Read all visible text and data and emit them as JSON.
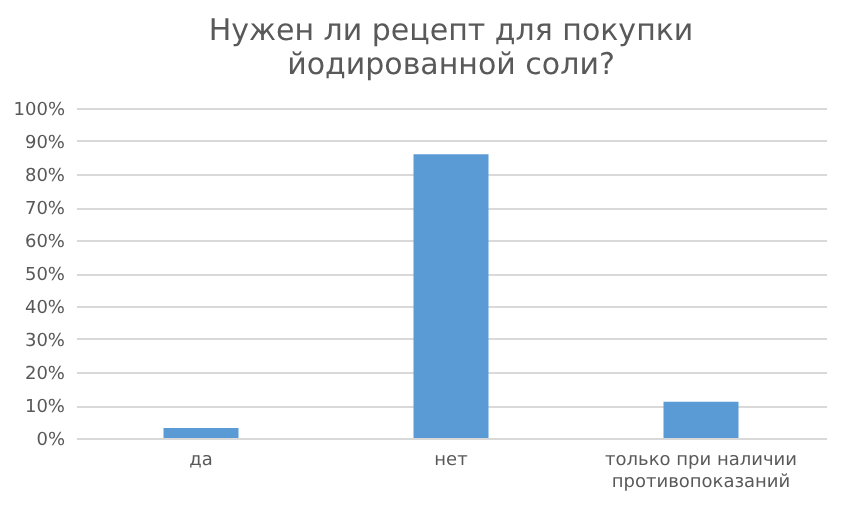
{
  "chart_data": {
    "type": "bar",
    "title": "Нужен ли рецепт для покупки йодированной соли?",
    "categories": [
      "да",
      "нет",
      "только при наличии противопоказаний"
    ],
    "values": [
      3,
      86,
      11
    ],
    "color": "#5b9bd5",
    "ylim": [
      0,
      100
    ],
    "yticks": [
      {
        "value": 0,
        "label": "0%"
      },
      {
        "value": 10,
        "label": "10%"
      },
      {
        "value": 20,
        "label": "20%"
      },
      {
        "value": 30,
        "label": "30%"
      },
      {
        "value": 40,
        "label": "40%"
      },
      {
        "value": 50,
        "label": "50%"
      },
      {
        "value": 60,
        "label": "60%"
      },
      {
        "value": 70,
        "label": "70%"
      },
      {
        "value": 80,
        "label": "80%"
      },
      {
        "value": 90,
        "label": "90%"
      },
      {
        "value": 100,
        "label": "100%"
      }
    ],
    "grid": "y"
  }
}
